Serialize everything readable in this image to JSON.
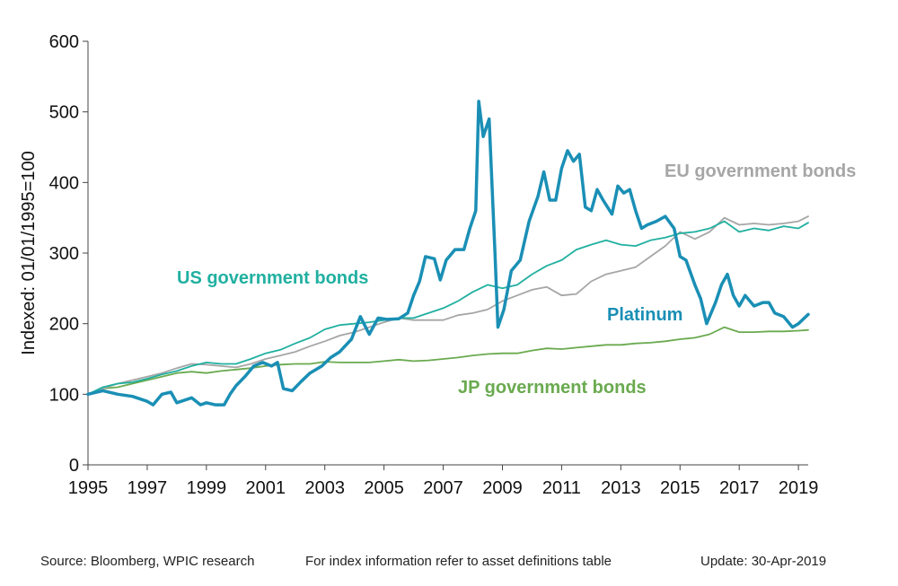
{
  "chart_data": {
    "type": "line",
    "title": "",
    "xlabel": "",
    "ylabel": "Indexed: 01/01/1995=100",
    "xlim": [
      1995.0,
      2019.33
    ],
    "ylim": [
      0,
      600
    ],
    "x_ticks": [
      1995,
      1997,
      1999,
      2001,
      2003,
      2005,
      2007,
      2009,
      2011,
      2013,
      2015,
      2017,
      2019
    ],
    "y_ticks": [
      0,
      100,
      200,
      300,
      400,
      500,
      600
    ],
    "grid": false,
    "legend": "inline labels",
    "series": [
      {
        "name": "Platinum",
        "color": "#1a8fb5",
        "points": [
          [
            1995.0,
            100
          ],
          [
            1995.5,
            105
          ],
          [
            1996.0,
            100
          ],
          [
            1996.5,
            97
          ],
          [
            1997.0,
            90
          ],
          [
            1997.2,
            85
          ],
          [
            1997.5,
            100
          ],
          [
            1997.8,
            103
          ],
          [
            1998.0,
            88
          ],
          [
            1998.5,
            95
          ],
          [
            1998.8,
            85
          ],
          [
            1999.0,
            88
          ],
          [
            1999.3,
            85
          ],
          [
            1999.6,
            85
          ],
          [
            1999.8,
            100
          ],
          [
            2000.0,
            112
          ],
          [
            2000.3,
            125
          ],
          [
            2000.6,
            140
          ],
          [
            2000.9,
            145
          ],
          [
            2001.2,
            140
          ],
          [
            2001.4,
            145
          ],
          [
            2001.6,
            108
          ],
          [
            2001.9,
            105
          ],
          [
            2002.2,
            118
          ],
          [
            2002.5,
            130
          ],
          [
            2002.9,
            140
          ],
          [
            2003.2,
            152
          ],
          [
            2003.5,
            160
          ],
          [
            2003.9,
            178
          ],
          [
            2004.2,
            210
          ],
          [
            2004.5,
            185
          ],
          [
            2004.8,
            208
          ],
          [
            2005.1,
            206
          ],
          [
            2005.5,
            207
          ],
          [
            2005.8,
            215
          ],
          [
            2006.0,
            240
          ],
          [
            2006.2,
            260
          ],
          [
            2006.4,
            295
          ],
          [
            2006.7,
            292
          ],
          [
            2006.9,
            262
          ],
          [
            2007.1,
            290
          ],
          [
            2007.4,
            305
          ],
          [
            2007.7,
            305
          ],
          [
            2007.9,
            335
          ],
          [
            2008.1,
            360
          ],
          [
            2008.2,
            515
          ],
          [
            2008.35,
            465
          ],
          [
            2008.55,
            490
          ],
          [
            2008.75,
            300
          ],
          [
            2008.85,
            195
          ],
          [
            2009.05,
            220
          ],
          [
            2009.3,
            275
          ],
          [
            2009.6,
            290
          ],
          [
            2009.9,
            345
          ],
          [
            2010.2,
            380
          ],
          [
            2010.4,
            415
          ],
          [
            2010.6,
            375
          ],
          [
            2010.8,
            375
          ],
          [
            2011.0,
            420
          ],
          [
            2011.2,
            445
          ],
          [
            2011.4,
            430
          ],
          [
            2011.6,
            440
          ],
          [
            2011.8,
            365
          ],
          [
            2012.0,
            360
          ],
          [
            2012.2,
            390
          ],
          [
            2012.4,
            375
          ],
          [
            2012.7,
            355
          ],
          [
            2012.9,
            395
          ],
          [
            2013.1,
            385
          ],
          [
            2013.3,
            390
          ],
          [
            2013.5,
            360
          ],
          [
            2013.7,
            335
          ],
          [
            2013.9,
            340
          ],
          [
            2014.2,
            345
          ],
          [
            2014.5,
            352
          ],
          [
            2014.8,
            335
          ],
          [
            2015.0,
            295
          ],
          [
            2015.2,
            290
          ],
          [
            2015.5,
            255
          ],
          [
            2015.7,
            235
          ],
          [
            2015.9,
            200
          ],
          [
            2016.2,
            230
          ],
          [
            2016.4,
            255
          ],
          [
            2016.6,
            270
          ],
          [
            2016.8,
            240
          ],
          [
            2017.0,
            225
          ],
          [
            2017.2,
            240
          ],
          [
            2017.5,
            225
          ],
          [
            2017.8,
            230
          ],
          [
            2018.0,
            230
          ],
          [
            2018.2,
            215
          ],
          [
            2018.5,
            210
          ],
          [
            2018.8,
            195
          ],
          [
            2019.0,
            200
          ],
          [
            2019.33,
            213
          ]
        ]
      },
      {
        "name": "US government bonds",
        "color": "#20b0a0",
        "points": [
          [
            1995.0,
            100
          ],
          [
            1995.5,
            110
          ],
          [
            1996.0,
            115
          ],
          [
            1996.5,
            117
          ],
          [
            1997.0,
            122
          ],
          [
            1997.5,
            128
          ],
          [
            1998.0,
            133
          ],
          [
            1998.5,
            140
          ],
          [
            1999.0,
            145
          ],
          [
            1999.5,
            143
          ],
          [
            2000.0,
            143
          ],
          [
            2000.5,
            150
          ],
          [
            2001.0,
            158
          ],
          [
            2001.5,
            163
          ],
          [
            2002.0,
            172
          ],
          [
            2002.5,
            180
          ],
          [
            2003.0,
            192
          ],
          [
            2003.5,
            198
          ],
          [
            2004.0,
            200
          ],
          [
            2004.5,
            202
          ],
          [
            2005.0,
            205
          ],
          [
            2005.5,
            208
          ],
          [
            2006.0,
            208
          ],
          [
            2006.5,
            215
          ],
          [
            2007.0,
            222
          ],
          [
            2007.5,
            232
          ],
          [
            2008.0,
            245
          ],
          [
            2008.5,
            255
          ],
          [
            2009.0,
            250
          ],
          [
            2009.5,
            255
          ],
          [
            2010.0,
            270
          ],
          [
            2010.5,
            282
          ],
          [
            2011.0,
            290
          ],
          [
            2011.5,
            305
          ],
          [
            2012.0,
            312
          ],
          [
            2012.5,
            318
          ],
          [
            2013.0,
            312
          ],
          [
            2013.5,
            310
          ],
          [
            2014.0,
            318
          ],
          [
            2014.5,
            322
          ],
          [
            2015.0,
            328
          ],
          [
            2015.5,
            330
          ],
          [
            2016.0,
            335
          ],
          [
            2016.5,
            345
          ],
          [
            2017.0,
            330
          ],
          [
            2017.5,
            335
          ],
          [
            2018.0,
            332
          ],
          [
            2018.5,
            338
          ],
          [
            2019.0,
            335
          ],
          [
            2019.33,
            343
          ]
        ]
      },
      {
        "name": "EU government bonds",
        "color": "#a6a6a6",
        "points": [
          [
            1995.0,
            100
          ],
          [
            1995.5,
            108
          ],
          [
            1996.0,
            115
          ],
          [
            1996.5,
            120
          ],
          [
            1997.0,
            125
          ],
          [
            1997.5,
            130
          ],
          [
            1998.0,
            137
          ],
          [
            1998.5,
            143
          ],
          [
            1999.0,
            142
          ],
          [
            1999.5,
            140
          ],
          [
            2000.0,
            138
          ],
          [
            2000.5,
            143
          ],
          [
            2001.0,
            150
          ],
          [
            2001.5,
            155
          ],
          [
            2002.0,
            160
          ],
          [
            2002.5,
            168
          ],
          [
            2003.0,
            175
          ],
          [
            2003.5,
            183
          ],
          [
            2004.0,
            188
          ],
          [
            2004.5,
            195
          ],
          [
            2005.0,
            202
          ],
          [
            2005.5,
            208
          ],
          [
            2006.0,
            205
          ],
          [
            2006.5,
            205
          ],
          [
            2007.0,
            205
          ],
          [
            2007.5,
            212
          ],
          [
            2008.0,
            215
          ],
          [
            2008.5,
            220
          ],
          [
            2009.0,
            232
          ],
          [
            2009.5,
            240
          ],
          [
            2010.0,
            248
          ],
          [
            2010.5,
            252
          ],
          [
            2011.0,
            240
          ],
          [
            2011.5,
            242
          ],
          [
            2012.0,
            260
          ],
          [
            2012.5,
            270
          ],
          [
            2013.0,
            275
          ],
          [
            2013.5,
            280
          ],
          [
            2014.0,
            295
          ],
          [
            2014.5,
            310
          ],
          [
            2015.0,
            330
          ],
          [
            2015.5,
            320
          ],
          [
            2016.0,
            330
          ],
          [
            2016.5,
            350
          ],
          [
            2017.0,
            340
          ],
          [
            2017.5,
            342
          ],
          [
            2018.0,
            340
          ],
          [
            2018.5,
            342
          ],
          [
            2019.0,
            345
          ],
          [
            2019.33,
            352
          ]
        ]
      },
      {
        "name": "JP government bonds",
        "color": "#6aaa4f",
        "points": [
          [
            1995.0,
            100
          ],
          [
            1995.5,
            108
          ],
          [
            1996.0,
            110
          ],
          [
            1996.5,
            115
          ],
          [
            1997.0,
            120
          ],
          [
            1997.5,
            125
          ],
          [
            1998.0,
            130
          ],
          [
            1998.5,
            132
          ],
          [
            1999.0,
            130
          ],
          [
            1999.5,
            133
          ],
          [
            2000.0,
            135
          ],
          [
            2000.5,
            137
          ],
          [
            2001.0,
            140
          ],
          [
            2001.5,
            142
          ],
          [
            2002.0,
            143
          ],
          [
            2002.5,
            143
          ],
          [
            2003.0,
            146
          ],
          [
            2003.5,
            145
          ],
          [
            2004.0,
            145
          ],
          [
            2004.5,
            145
          ],
          [
            2005.0,
            147
          ],
          [
            2005.5,
            149
          ],
          [
            2006.0,
            147
          ],
          [
            2006.5,
            148
          ],
          [
            2007.0,
            150
          ],
          [
            2007.5,
            152
          ],
          [
            2008.0,
            155
          ],
          [
            2008.5,
            157
          ],
          [
            2009.0,
            158
          ],
          [
            2009.5,
            158
          ],
          [
            2010.0,
            162
          ],
          [
            2010.5,
            165
          ],
          [
            2011.0,
            164
          ],
          [
            2011.5,
            166
          ],
          [
            2012.0,
            168
          ],
          [
            2012.5,
            170
          ],
          [
            2013.0,
            170
          ],
          [
            2013.5,
            172
          ],
          [
            2014.0,
            173
          ],
          [
            2014.5,
            175
          ],
          [
            2015.0,
            178
          ],
          [
            2015.5,
            180
          ],
          [
            2016.0,
            185
          ],
          [
            2016.5,
            195
          ],
          [
            2017.0,
            188
          ],
          [
            2017.5,
            188
          ],
          [
            2018.0,
            189
          ],
          [
            2018.5,
            189
          ],
          [
            2019.0,
            190
          ],
          [
            2019.33,
            191
          ]
        ]
      }
    ]
  },
  "labels": {
    "eu": "EU government bonds",
    "us": "US government bonds",
    "platinum": "Platinum",
    "jp": "JP government bonds"
  },
  "footer": {
    "source": "Source: Bloomberg, WPIC research",
    "note": "For index information refer to asset definitions table",
    "update": "Update: 30-Apr-2019"
  }
}
